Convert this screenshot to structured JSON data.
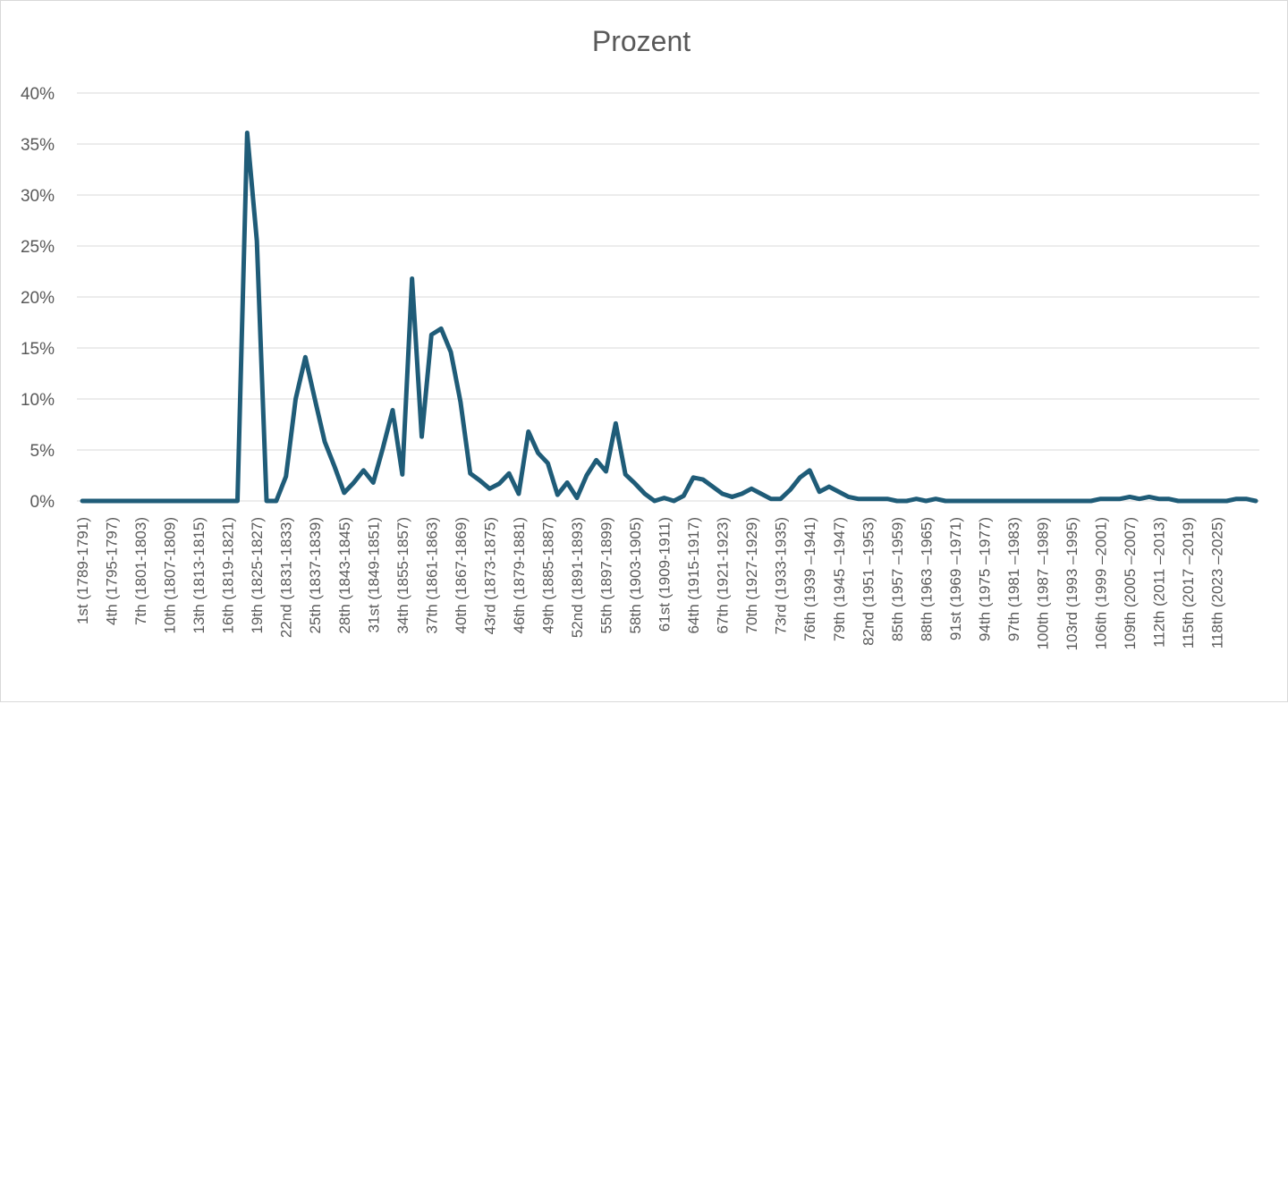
{
  "chart_data": {
    "type": "line",
    "title": "Prozent",
    "xlabel": "",
    "ylabel": "",
    "ylim": [
      0,
      0.4
    ],
    "yticks": [
      "0%",
      "5%",
      "10%",
      "15%",
      "20%",
      "25%",
      "30%",
      "35%",
      "40%"
    ],
    "grid": true,
    "legend": "none",
    "color": "#1F5C78",
    "x_tick_labels": [
      "1st (1789-1791)",
      "4th (1795-1797)",
      "7th (1801-1803)",
      "10th (1807-1809)",
      "13th (1813-1815)",
      "16th (1819-1821)",
      "19th (1825-1827)",
      "22nd (1831-1833)",
      "25th (1837-1839)",
      "28th (1843-1845)",
      "31st (1849-1851)",
      "34th (1855-1857)",
      "37th (1861-1863)",
      "40th (1867-1869)",
      "43rd (1873-1875)",
      "46th (1879-1881)",
      "49th (1885-1887)",
      "52nd (1891-1893)",
      "55th (1897-1899)",
      "58th (1903-1905)",
      "61st (1909-1911)",
      "64th (1915-1917)",
      "67th (1921-1923)",
      "70th (1927-1929)",
      "73rd (1933-1935)",
      "76th (1939 –1941)",
      "79th (1945 –1947)",
      "82nd (1951 –1953)",
      "85th (1957 –1959)",
      "88th (1963 –1965)",
      "91st (1969 –1971)",
      "94th (1975 –1977)",
      "97th (1981 –1983)",
      "100th (1987 –1989)",
      "103rd (1993 –1995)",
      "106th (1999 –2001)",
      "109th (2005 –2007)",
      "112th (2011 –2013)",
      "115th (2017 –2019)",
      "118th (2023 –2025)"
    ],
    "series": [
      {
        "values": [
          0,
          0,
          0,
          0,
          0,
          0,
          0,
          0,
          0,
          0,
          0,
          0,
          0,
          0,
          0,
          0,
          0,
          0.361,
          0.255,
          0,
          0,
          0.024,
          0.1,
          0.141,
          0.099,
          0.058,
          0.034,
          0.008,
          0.018,
          0.03,
          0.018,
          0.052,
          0.089,
          0.026,
          0.218,
          0.063,
          0.163,
          0.169,
          0.146,
          0.097,
          0.027,
          0.02,
          0.012,
          0.017,
          0.027,
          0.007,
          0.068,
          0.047,
          0.037,
          0.006,
          0.018,
          0.003,
          0.025,
          0.04,
          0.029,
          0.076,
          0.026,
          0.017,
          0.007,
          0,
          0.003,
          0,
          0.005,
          0.023,
          0.021,
          0.014,
          0.007,
          0.004,
          0.007,
          0.012,
          0.007,
          0.002,
          0.002,
          0.011,
          0.023,
          0.03,
          0.009,
          0.014,
          0.009,
          0.004,
          0.002,
          0.002,
          0.002,
          0.002,
          0,
          0,
          0.002,
          0,
          0.002,
          0,
          0,
          0,
          0,
          0,
          0,
          0,
          0,
          0,
          0,
          0,
          0,
          0,
          0,
          0,
          0,
          0.002,
          0.002,
          0.002,
          0.004,
          0.002,
          0.004,
          0.002,
          0.002,
          0,
          0,
          0,
          0,
          0,
          0,
          0.002,
          0.002,
          0
        ]
      }
    ]
  }
}
